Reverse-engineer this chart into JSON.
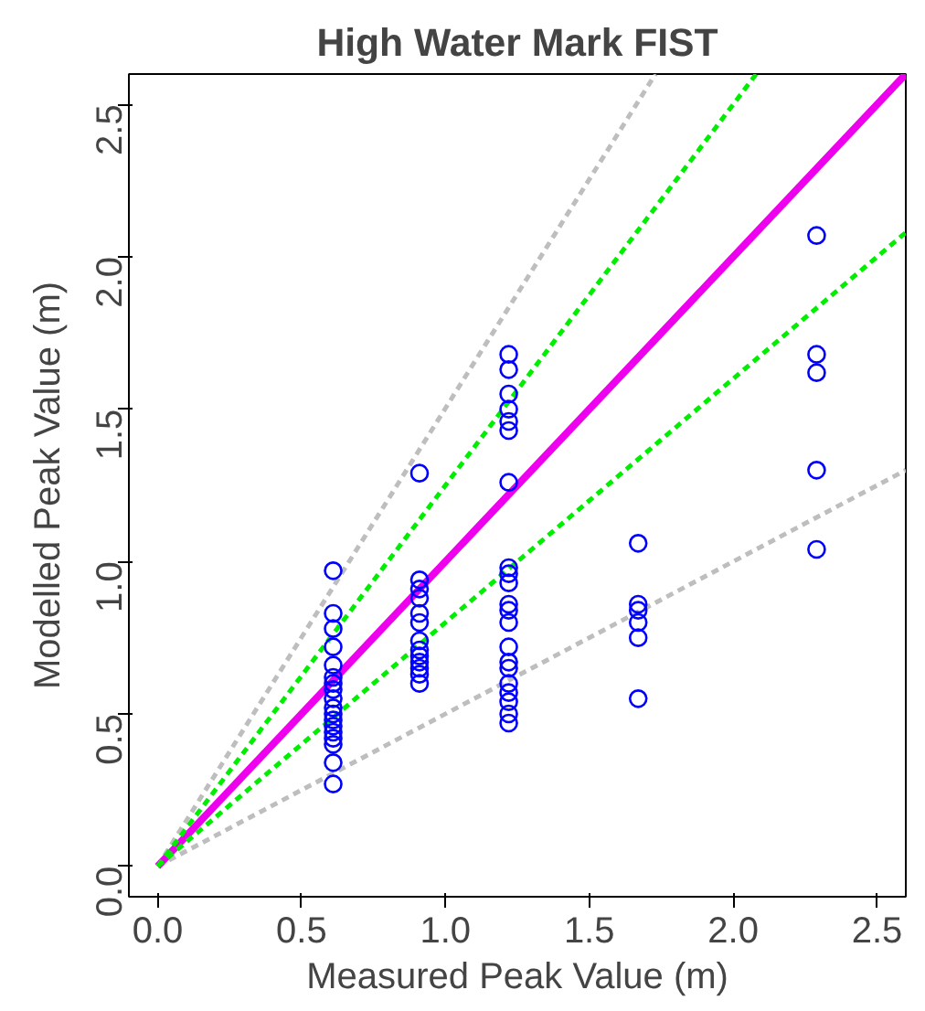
{
  "chart_data": {
    "type": "scatter",
    "title": "High Water Mark FIST",
    "xlabel": "Measured Peak Value (m)",
    "ylabel": "Modelled Peak Value (m)",
    "xlim": [
      -0.1,
      2.6
    ],
    "ylim": [
      -0.1,
      2.6
    ],
    "xticks": [
      {
        "value": 0,
        "label": "0.0"
      },
      {
        "value": 0.5,
        "label": "0.5"
      },
      {
        "value": 1,
        "label": "1.0"
      },
      {
        "value": 1.5,
        "label": "1.5"
      },
      {
        "value": 2,
        "label": "2.0"
      },
      {
        "value": 2.5,
        "label": "2.5"
      }
    ],
    "yticks": [
      {
        "value": 0,
        "label": "0.0"
      },
      {
        "value": 0.5,
        "label": "0.5"
      },
      {
        "value": 1,
        "label": "1.0"
      },
      {
        "value": 1.5,
        "label": "1.5"
      },
      {
        "value": 2,
        "label": "2.0"
      },
      {
        "value": 2.5,
        "label": "2.5"
      }
    ],
    "grid": false,
    "series": [
      {
        "type": "line",
        "color": "#bebebe",
        "line_style": "dashed",
        "x": [
          0,
          1.73
        ],
        "values": [
          0,
          2.6
        ]
      },
      {
        "type": "line",
        "color": "#bebebe",
        "line_style": "dashed",
        "x": [
          0,
          2.6
        ],
        "values": [
          0,
          1.3
        ]
      },
      {
        "type": "line",
        "color": "#ee00ee",
        "line_style": "solid",
        "x": [
          0,
          2.6
        ],
        "values": [
          0,
          2.6
        ]
      },
      {
        "type": "line",
        "color": "#00ee00",
        "line_style": "dashed",
        "x": [
          0,
          2.08
        ],
        "values": [
          0,
          2.6
        ]
      },
      {
        "type": "line",
        "color": "#00ee00",
        "line_style": "dashed",
        "x": [
          0,
          2.6
        ],
        "values": [
          0,
          2.08
        ]
      },
      {
        "marker": "circle",
        "color": "#0000ff",
        "x": [
          0.61,
          0.61,
          0.61,
          0.61,
          0.61,
          0.61,
          0.61,
          0.61,
          0.61,
          0.61,
          0.61,
          0.61,
          0.61,
          0.61,
          0.61,
          0.61,
          0.61,
          0.61,
          0.91,
          0.91,
          0.91,
          0.91,
          0.91,
          0.91,
          0.91,
          0.91,
          0.91,
          0.91,
          0.91,
          0.91,
          0.91,
          1.22,
          1.22,
          1.22,
          1.22,
          1.22,
          1.22,
          1.22,
          1.22,
          1.22,
          1.22,
          1.22,
          1.22,
          1.22,
          1.22,
          1.22,
          1.22,
          1.22,
          1.22,
          1.22,
          1.22,
          1.22,
          1.67,
          1.67,
          1.67,
          1.67,
          1.67,
          1.67,
          2.29,
          2.29,
          2.29,
          2.29,
          2.29
        ],
        "values": [
          0.97,
          0.83,
          0.78,
          0.72,
          0.66,
          0.62,
          0.6,
          0.58,
          0.55,
          0.52,
          0.5,
          0.48,
          0.46,
          0.44,
          0.42,
          0.4,
          0.34,
          0.27,
          1.29,
          0.94,
          0.91,
          0.88,
          0.83,
          0.8,
          0.74,
          0.71,
          0.69,
          0.67,
          0.65,
          0.63,
          0.6,
          1.68,
          1.63,
          1.55,
          1.5,
          1.46,
          1.43,
          1.26,
          0.98,
          0.96,
          0.93,
          0.86,
          0.84,
          0.8,
          0.72,
          0.67,
          0.65,
          0.6,
          0.57,
          0.54,
          0.5,
          0.47,
          1.06,
          0.86,
          0.84,
          0.8,
          0.75,
          0.55,
          2.07,
          1.68,
          1.62,
          1.3,
          1.04
        ]
      }
    ]
  }
}
